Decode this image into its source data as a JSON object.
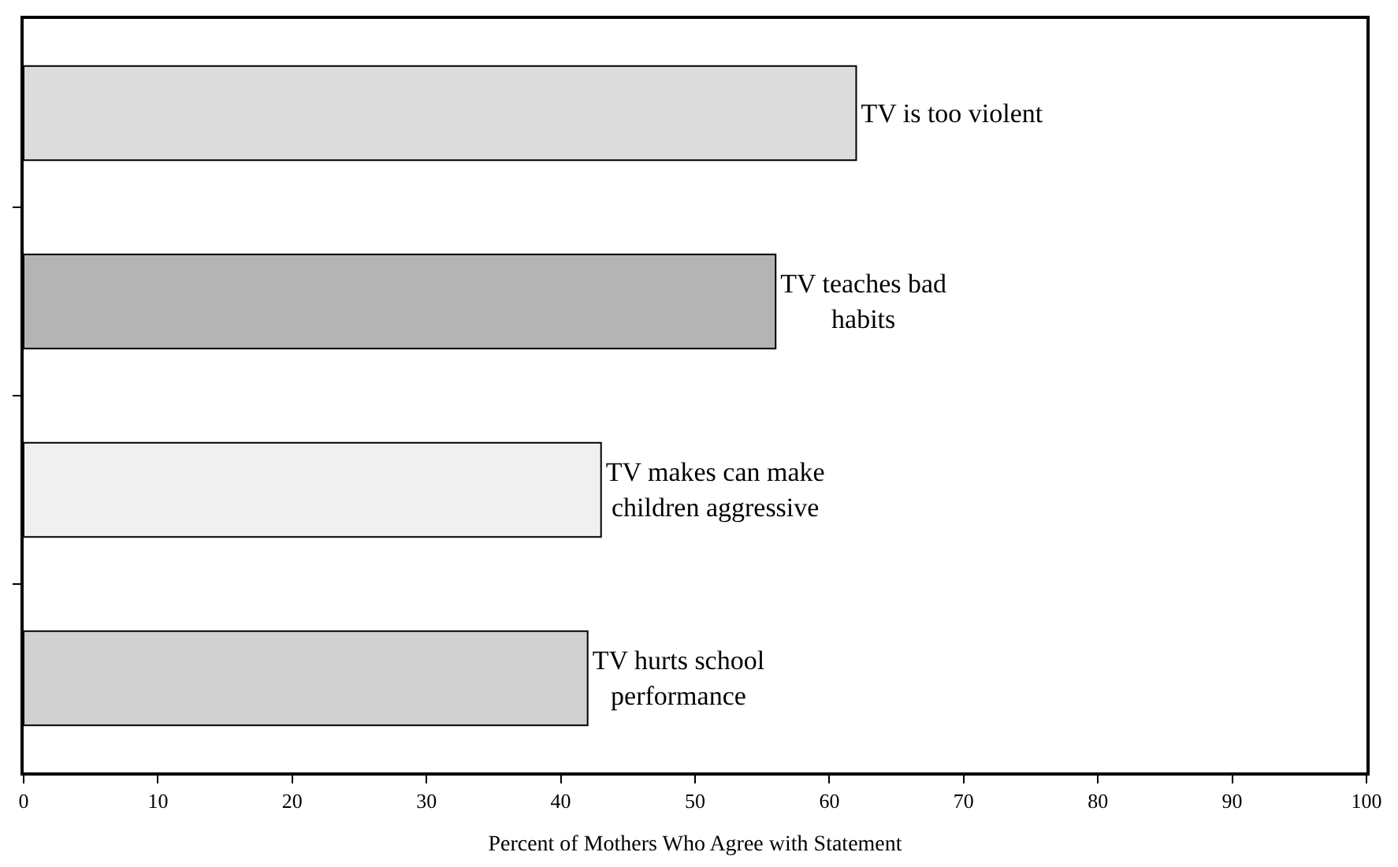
{
  "chart_data": {
    "type": "bar",
    "orientation": "horizontal",
    "categories": [
      "TV is too violent",
      "TV teaches bad habits",
      "TV makes can make children aggressive",
      "TV hurts school performance"
    ],
    "values": [
      62,
      56,
      43,
      42
    ],
    "colors": [
      "#dcdcdc",
      "#b4b4b4",
      "#f0f0f0",
      "#d0d0d0"
    ],
    "xlabel": "Percent of Mothers Who Agree with Statement",
    "xlim": [
      0,
      100
    ],
    "xticks": [
      0,
      10,
      20,
      30,
      40,
      50,
      60,
      70,
      80,
      90,
      100
    ],
    "tick_labels": "x"
  }
}
